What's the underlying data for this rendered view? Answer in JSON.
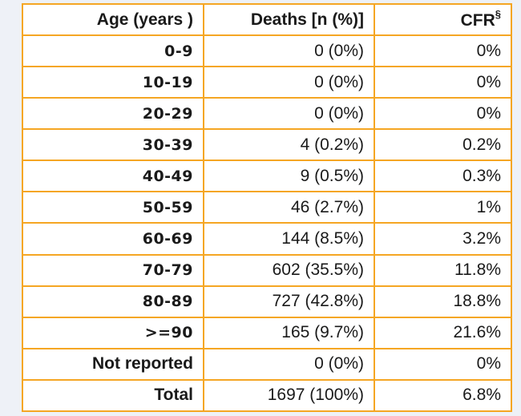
{
  "table": {
    "headers": {
      "age": "Age (years )",
      "deaths": "Deaths [n (%)]",
      "cfr": "CFR",
      "cfr_mark": "§"
    },
    "rows": [
      {
        "age": "0-9",
        "deaths": "0 (0%)",
        "cfr": "0%"
      },
      {
        "age": "10-19",
        "deaths": "0 (0%)",
        "cfr": "0%"
      },
      {
        "age": "20-29",
        "deaths": "0 (0%)",
        "cfr": "0%"
      },
      {
        "age": "30-39",
        "deaths": "4 (0.2%)",
        "cfr": "0.2%"
      },
      {
        "age": "40-49",
        "deaths": "9 (0.5%)",
        "cfr": "0.3%"
      },
      {
        "age": "50-59",
        "deaths": "46 (2.7%)",
        "cfr": "1%"
      },
      {
        "age": "60-69",
        "deaths": "144 (8.5%)",
        "cfr": "3.2%"
      },
      {
        "age": "70-79",
        "deaths": "602 (35.5%)",
        "cfr": "11.8%"
      },
      {
        "age": "80-89",
        "deaths": "727 (42.8%)",
        "cfr": "18.8%"
      },
      {
        "age": ">=90",
        "deaths": "165 (9.7%)",
        "cfr": "21.6%"
      },
      {
        "age": "Not reported",
        "deaths": "0 (0%)",
        "cfr": "0%"
      },
      {
        "age": "Total",
        "deaths": "1697 (100%)",
        "cfr": "6.8%"
      }
    ]
  },
  "colors": {
    "border": "#f5a623",
    "background": "#eef1f7",
    "cell": "#ffffff",
    "text": "#1a1a1a"
  }
}
